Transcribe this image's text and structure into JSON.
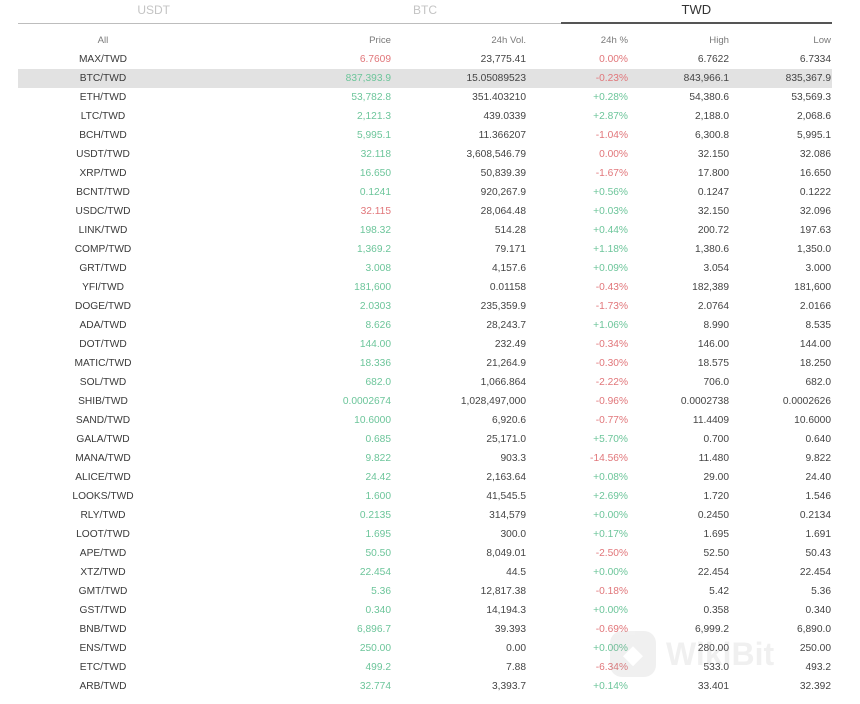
{
  "tabs": [
    {
      "label": "USDT",
      "active": false
    },
    {
      "label": "BTC",
      "active": false
    },
    {
      "label": "TWD",
      "active": true
    }
  ],
  "header": {
    "pair": "All",
    "price": "Price",
    "volume": "24h Vol.",
    "change": "24h %",
    "high": "High",
    "low": "Low"
  },
  "colors": {
    "up": "#6cc59a",
    "down": "#e1767a",
    "selected_row": "#e2e2e2"
  },
  "rows": [
    {
      "pair": "MAX/TWD",
      "price": "6.7609",
      "price_dir": "down",
      "volume": "23,775.41",
      "change": "0.00%",
      "change_dir": "down",
      "high": "6.7622",
      "low": "6.7334"
    },
    {
      "pair": "BTC/TWD",
      "price": "837,393.9",
      "price_dir": "up",
      "volume": "15.05089523",
      "change": "-0.23%",
      "change_dir": "down",
      "high": "843,966.1",
      "low": "835,367.9",
      "selected": true
    },
    {
      "pair": "ETH/TWD",
      "price": "53,782.8",
      "price_dir": "up",
      "volume": "351.403210",
      "change": "+0.28%",
      "change_dir": "up",
      "high": "54,380.6",
      "low": "53,569.3"
    },
    {
      "pair": "LTC/TWD",
      "price": "2,121.3",
      "price_dir": "up",
      "volume": "439.0339",
      "change": "+2.87%",
      "change_dir": "up",
      "high": "2,188.0",
      "low": "2,068.6"
    },
    {
      "pair": "BCH/TWD",
      "price": "5,995.1",
      "price_dir": "up",
      "volume": "11.366207",
      "change": "-1.04%",
      "change_dir": "down",
      "high": "6,300.8",
      "low": "5,995.1"
    },
    {
      "pair": "USDT/TWD",
      "price": "32.118",
      "price_dir": "up",
      "volume": "3,608,546.79",
      "change": "0.00%",
      "change_dir": "down",
      "high": "32.150",
      "low": "32.086"
    },
    {
      "pair": "XRP/TWD",
      "price": "16.650",
      "price_dir": "up",
      "volume": "50,839.39",
      "change": "-1.67%",
      "change_dir": "down",
      "high": "17.800",
      "low": "16.650"
    },
    {
      "pair": "BCNT/TWD",
      "price": "0.1241",
      "price_dir": "up",
      "volume": "920,267.9",
      "change": "+0.56%",
      "change_dir": "up",
      "high": "0.1247",
      "low": "0.1222"
    },
    {
      "pair": "USDC/TWD",
      "price": "32.115",
      "price_dir": "down",
      "volume": "28,064.48",
      "change": "+0.03%",
      "change_dir": "up",
      "high": "32.150",
      "low": "32.096"
    },
    {
      "pair": "LINK/TWD",
      "price": "198.32",
      "price_dir": "up",
      "volume": "514.28",
      "change": "+0.44%",
      "change_dir": "up",
      "high": "200.72",
      "low": "197.63"
    },
    {
      "pair": "COMP/TWD",
      "price": "1,369.2",
      "price_dir": "up",
      "volume": "79.171",
      "change": "+1.18%",
      "change_dir": "up",
      "high": "1,380.6",
      "low": "1,350.0"
    },
    {
      "pair": "GRT/TWD",
      "price": "3.008",
      "price_dir": "up",
      "volume": "4,157.6",
      "change": "+0.09%",
      "change_dir": "up",
      "high": "3.054",
      "low": "3.000"
    },
    {
      "pair": "YFI/TWD",
      "price": "181,600",
      "price_dir": "up",
      "volume": "0.01158",
      "change": "-0.43%",
      "change_dir": "down",
      "high": "182,389",
      "low": "181,600"
    },
    {
      "pair": "DOGE/TWD",
      "price": "2.0303",
      "price_dir": "up",
      "volume": "235,359.9",
      "change": "-1.73%",
      "change_dir": "down",
      "high": "2.0764",
      "low": "2.0166"
    },
    {
      "pair": "ADA/TWD",
      "price": "8.626",
      "price_dir": "up",
      "volume": "28,243.7",
      "change": "+1.06%",
      "change_dir": "up",
      "high": "8.990",
      "low": "8.535"
    },
    {
      "pair": "DOT/TWD",
      "price": "144.00",
      "price_dir": "up",
      "volume": "232.49",
      "change": "-0.34%",
      "change_dir": "down",
      "high": "146.00",
      "low": "144.00"
    },
    {
      "pair": "MATIC/TWD",
      "price": "18.336",
      "price_dir": "up",
      "volume": "21,264.9",
      "change": "-0.30%",
      "change_dir": "down",
      "high": "18.575",
      "low": "18.250"
    },
    {
      "pair": "SOL/TWD",
      "price": "682.0",
      "price_dir": "up",
      "volume": "1,066.864",
      "change": "-2.22%",
      "change_dir": "down",
      "high": "706.0",
      "low": "682.0"
    },
    {
      "pair": "SHIB/TWD",
      "price": "0.0002674",
      "price_dir": "up",
      "volume": "1,028,497,000",
      "change": "-0.96%",
      "change_dir": "down",
      "high": "0.0002738",
      "low": "0.0002626"
    },
    {
      "pair": "SAND/TWD",
      "price": "10.6000",
      "price_dir": "up",
      "volume": "6,920.6",
      "change": "-0.77%",
      "change_dir": "down",
      "high": "11.4409",
      "low": "10.6000"
    },
    {
      "pair": "GALA/TWD",
      "price": "0.685",
      "price_dir": "up",
      "volume": "25,171.0",
      "change": "+5.70%",
      "change_dir": "up",
      "high": "0.700",
      "low": "0.640"
    },
    {
      "pair": "MANA/TWD",
      "price": "9.822",
      "price_dir": "up",
      "volume": "903.3",
      "change": "-14.56%",
      "change_dir": "down",
      "high": "11.480",
      "low": "9.822"
    },
    {
      "pair": "ALICE/TWD",
      "price": "24.42",
      "price_dir": "up",
      "volume": "2,163.64",
      "change": "+0.08%",
      "change_dir": "up",
      "high": "29.00",
      "low": "24.40"
    },
    {
      "pair": "LOOKS/TWD",
      "price": "1.600",
      "price_dir": "up",
      "volume": "41,545.5",
      "change": "+2.69%",
      "change_dir": "up",
      "high": "1.720",
      "low": "1.546"
    },
    {
      "pair": "RLY/TWD",
      "price": "0.2135",
      "price_dir": "up",
      "volume": "314,579",
      "change": "+0.00%",
      "change_dir": "up",
      "high": "0.2450",
      "low": "0.2134"
    },
    {
      "pair": "LOOT/TWD",
      "price": "1.695",
      "price_dir": "up",
      "volume": "300.0",
      "change": "+0.17%",
      "change_dir": "up",
      "high": "1.695",
      "low": "1.691"
    },
    {
      "pair": "APE/TWD",
      "price": "50.50",
      "price_dir": "up",
      "volume": "8,049.01",
      "change": "-2.50%",
      "change_dir": "down",
      "high": "52.50",
      "low": "50.43"
    },
    {
      "pair": "XTZ/TWD",
      "price": "22.454",
      "price_dir": "up",
      "volume": "44.5",
      "change": "+0.00%",
      "change_dir": "up",
      "high": "22.454",
      "low": "22.454"
    },
    {
      "pair": "GMT/TWD",
      "price": "5.36",
      "price_dir": "up",
      "volume": "12,817.38",
      "change": "-0.18%",
      "change_dir": "down",
      "high": "5.42",
      "low": "5.36"
    },
    {
      "pair": "GST/TWD",
      "price": "0.340",
      "price_dir": "up",
      "volume": "14,194.3",
      "change": "+0.00%",
      "change_dir": "up",
      "high": "0.358",
      "low": "0.340"
    },
    {
      "pair": "BNB/TWD",
      "price": "6,896.7",
      "price_dir": "up",
      "volume": "39.393",
      "change": "-0.69%",
      "change_dir": "down",
      "high": "6,999.2",
      "low": "6,890.0"
    },
    {
      "pair": "ENS/TWD",
      "price": "250.00",
      "price_dir": "up",
      "volume": "0.00",
      "change": "+0.00%",
      "change_dir": "up",
      "high": "280.00",
      "low": "250.00"
    },
    {
      "pair": "ETC/TWD",
      "price": "499.2",
      "price_dir": "up",
      "volume": "7.88",
      "change": "-6.34%",
      "change_dir": "down",
      "high": "533.0",
      "low": "493.2"
    },
    {
      "pair": "ARB/TWD",
      "price": "32.774",
      "price_dir": "up",
      "volume": "3,393.7",
      "change": "+0.14%",
      "change_dir": "up",
      "high": "33.401",
      "low": "32.392"
    }
  ],
  "watermark": {
    "text": "WikiBit",
    "icon": "wikibit-logo-icon"
  }
}
